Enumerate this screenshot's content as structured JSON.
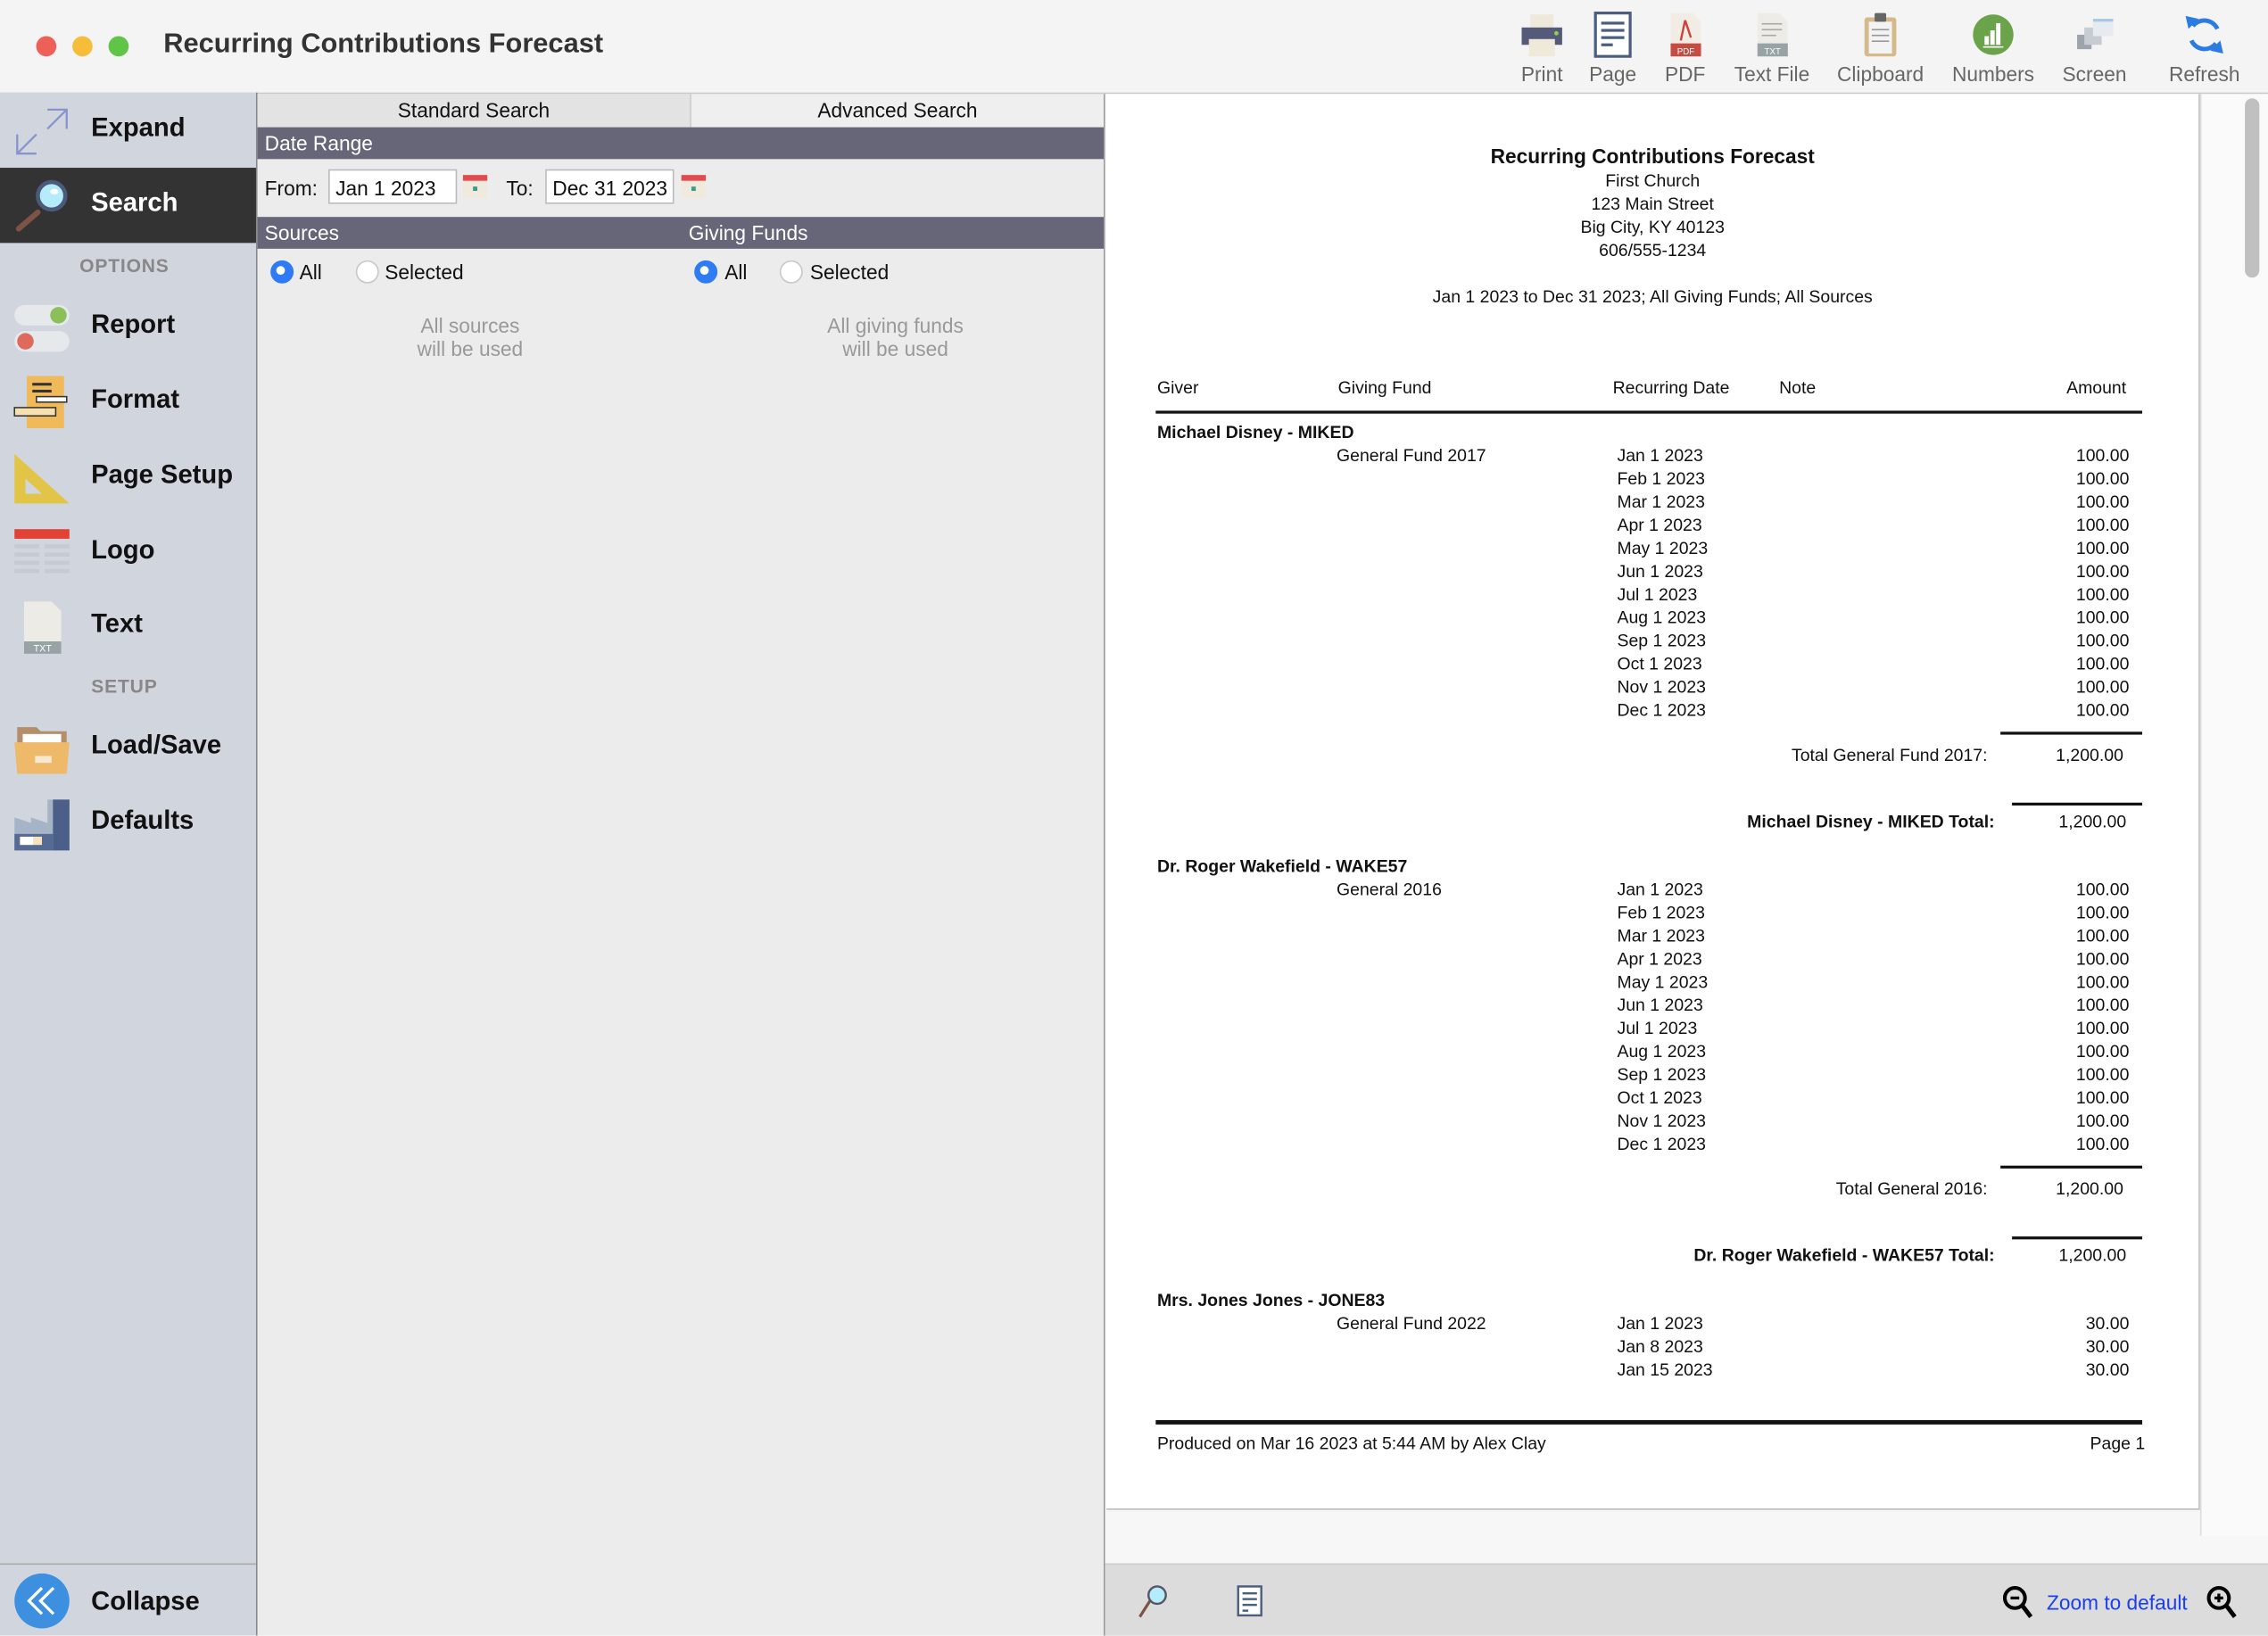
{
  "window": {
    "title": "Recurring Contributions Forecast",
    "traffic_lights": {
      "close": "#ee5f57",
      "minimize": "#f6bd3a",
      "zoom": "#5fc447"
    }
  },
  "toolbar": {
    "items": [
      {
        "label": "Print",
        "icon": "printer-icon"
      },
      {
        "label": "Page",
        "icon": "page-icon"
      },
      {
        "label": "PDF",
        "icon": "pdf-icon"
      },
      {
        "label": "Text File",
        "icon": "text-file-icon"
      },
      {
        "label": "Clipboard",
        "icon": "clipboard-icon"
      },
      {
        "label": "Numbers",
        "icon": "numbers-icon"
      },
      {
        "label": "Screen",
        "icon": "screen-icon"
      },
      {
        "label": "Refresh",
        "icon": "refresh-icon"
      }
    ]
  },
  "sidebar": {
    "expand": "Expand",
    "search": "Search",
    "options_heading": "OPTIONS",
    "report": "Report",
    "format": "Format",
    "page_setup": "Page Setup",
    "logo": "Logo",
    "text": "Text",
    "setup_heading": "SETUP",
    "load_save": "Load/Save",
    "defaults": "Defaults",
    "collapse": "Collapse",
    "active": "Search"
  },
  "search": {
    "tabs": [
      "Standard Search",
      "Advanced Search"
    ],
    "date_range_heading": "Date Range",
    "from_label": "From:",
    "from_value": "Jan 1 2023",
    "to_label": "To:",
    "to_value": "Dec 31 2023",
    "sources_heading": "Sources",
    "funds_heading": "Giving Funds",
    "sources_all": "All",
    "sources_selected": "Selected",
    "sources_choice": "All",
    "sources_hint_1": "All sources",
    "sources_hint_2": "will be used",
    "funds_all": "All",
    "funds_selected": "Selected",
    "funds_choice": "All",
    "funds_hint_1": "All giving funds",
    "funds_hint_2": "will be used"
  },
  "report": {
    "title": "Recurring Contributions Forecast",
    "org_name": "First Church",
    "address": "123 Main Street",
    "city": "Big City, KY  40123",
    "phone": "606/555-1234",
    "criteria": "Jan 1 2023 to Dec 31 2023; All Giving Funds; All Sources",
    "columns": [
      "Giver",
      "Giving Fund",
      "Recurring Date",
      "Note",
      "Amount"
    ],
    "givers": [
      {
        "name": "Michael Disney - MIKED",
        "fund": "General Fund 2017",
        "rows": [
          [
            "Jan 1 2023",
            "100.00"
          ],
          [
            "Feb 1 2023",
            "100.00"
          ],
          [
            "Mar 1 2023",
            "100.00"
          ],
          [
            "Apr 1 2023",
            "100.00"
          ],
          [
            "May 1 2023",
            "100.00"
          ],
          [
            "Jun 1 2023",
            "100.00"
          ],
          [
            "Jul 1 2023",
            "100.00"
          ],
          [
            "Aug 1 2023",
            "100.00"
          ],
          [
            "Sep 1 2023",
            "100.00"
          ],
          [
            "Oct 1 2023",
            "100.00"
          ],
          [
            "Nov 1 2023",
            "100.00"
          ],
          [
            "Dec 1 2023",
            "100.00"
          ]
        ],
        "fund_total_label": "Total General Fund 2017:",
        "fund_total": "1,200.00",
        "giver_total_label": "Michael Disney - MIKED Total:",
        "giver_total": "1,200.00"
      },
      {
        "name": "Dr. Roger Wakefield - WAKE57",
        "fund": "General 2016",
        "rows": [
          [
            "Jan 1 2023",
            "100.00"
          ],
          [
            "Feb 1 2023",
            "100.00"
          ],
          [
            "Mar 1 2023",
            "100.00"
          ],
          [
            "Apr 1 2023",
            "100.00"
          ],
          [
            "May 1 2023",
            "100.00"
          ],
          [
            "Jun 1 2023",
            "100.00"
          ],
          [
            "Jul 1 2023",
            "100.00"
          ],
          [
            "Aug 1 2023",
            "100.00"
          ],
          [
            "Sep 1 2023",
            "100.00"
          ],
          [
            "Oct 1 2023",
            "100.00"
          ],
          [
            "Nov 1 2023",
            "100.00"
          ],
          [
            "Dec 1 2023",
            "100.00"
          ]
        ],
        "fund_total_label": "Total General 2016:",
        "fund_total": "1,200.00",
        "giver_total_label": "Dr. Roger Wakefield - WAKE57 Total:",
        "giver_total": "1,200.00"
      },
      {
        "name": "Mrs. Jones Jones - JONE83",
        "fund": "General Fund 2022",
        "rows": [
          [
            "Jan 1 2023",
            "30.00"
          ],
          [
            "Jan 8 2023",
            "30.00"
          ],
          [
            "Jan 15 2023",
            "30.00"
          ]
        ]
      }
    ],
    "footer_left": "Produced on Mar 16 2023 at 5:44 AM by Alex Clay",
    "footer_right": "Page 1"
  },
  "bottom_bar": {
    "zoom_label": "Zoom to default",
    "link_color": "#1a3ef0"
  }
}
